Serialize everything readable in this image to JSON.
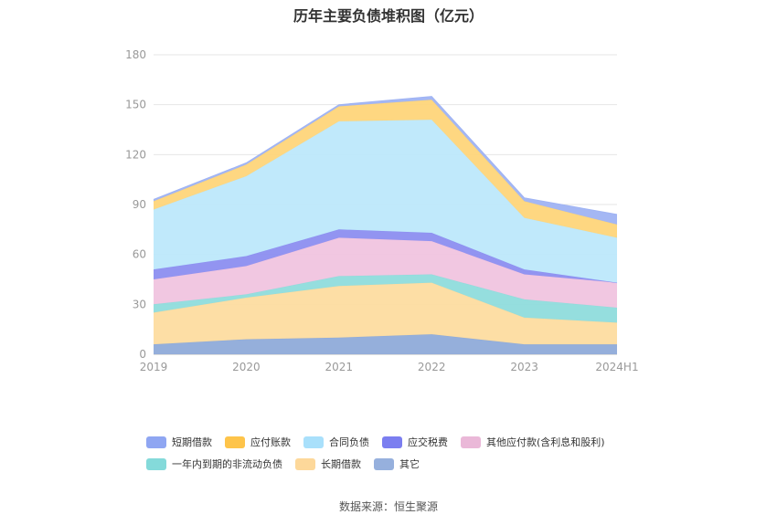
{
  "title": "历年主要负债堆积图（亿元）",
  "source": "数据来源：恒生聚源",
  "chart_data": {
    "type": "area",
    "stacked": true,
    "categories": [
      "2019",
      "2020",
      "2021",
      "2022",
      "2023",
      "2024H1"
    ],
    "ylim": [
      0,
      180
    ],
    "yticks": [
      0,
      30,
      60,
      90,
      120,
      150,
      180
    ],
    "grid": true,
    "legend_position": "bottom",
    "series": [
      {
        "name": "其它",
        "color": "#8fabd9",
        "values": [
          6,
          9,
          10,
          12,
          6,
          6
        ]
      },
      {
        "name": "长期借款",
        "color": "#fddca0",
        "values": [
          19,
          25,
          31,
          31,
          16,
          13
        ]
      },
      {
        "name": "一年内到期的非流动负债",
        "color": "#8fdcdc",
        "values": [
          5,
          2,
          6,
          5,
          11,
          9
        ]
      },
      {
        "name": "其他应付款(含利息和股利)",
        "color": "#f0c4df",
        "values": [
          15,
          17,
          23,
          20,
          15,
          15
        ]
      },
      {
        "name": "应交税费",
        "color": "#8c8ef0",
        "values": [
          6,
          6,
          5,
          5,
          3,
          0
        ]
      },
      {
        "name": "合同负债",
        "color": "#bde8fb",
        "values": [
          36,
          48,
          65,
          68,
          31,
          27
        ]
      },
      {
        "name": "应付账款",
        "color": "#fed57a",
        "values": [
          5,
          7,
          9,
          12,
          10,
          8
        ]
      },
      {
        "name": "短期借款",
        "color": "#9fb3f3",
        "values": [
          1,
          1,
          1,
          2,
          2,
          6
        ]
      }
    ]
  },
  "legend_rows": [
    [
      {
        "label": "短期借款",
        "color": "#8fa6f2"
      },
      {
        "label": "应付账款",
        "color": "#fec44a"
      },
      {
        "label": "合同负债",
        "color": "#a9e0fb"
      },
      {
        "label": "应交税费",
        "color": "#7b7ef0"
      },
      {
        "label": "其他应付款(含利息和股利)",
        "color": "#eab8d8"
      }
    ],
    [
      {
        "label": "一年内到期的非流动负债",
        "color": "#84dada"
      },
      {
        "label": "长期借款",
        "color": "#fdd89a"
      },
      {
        "label": "其它",
        "color": "#96b0dd"
      }
    ]
  ]
}
